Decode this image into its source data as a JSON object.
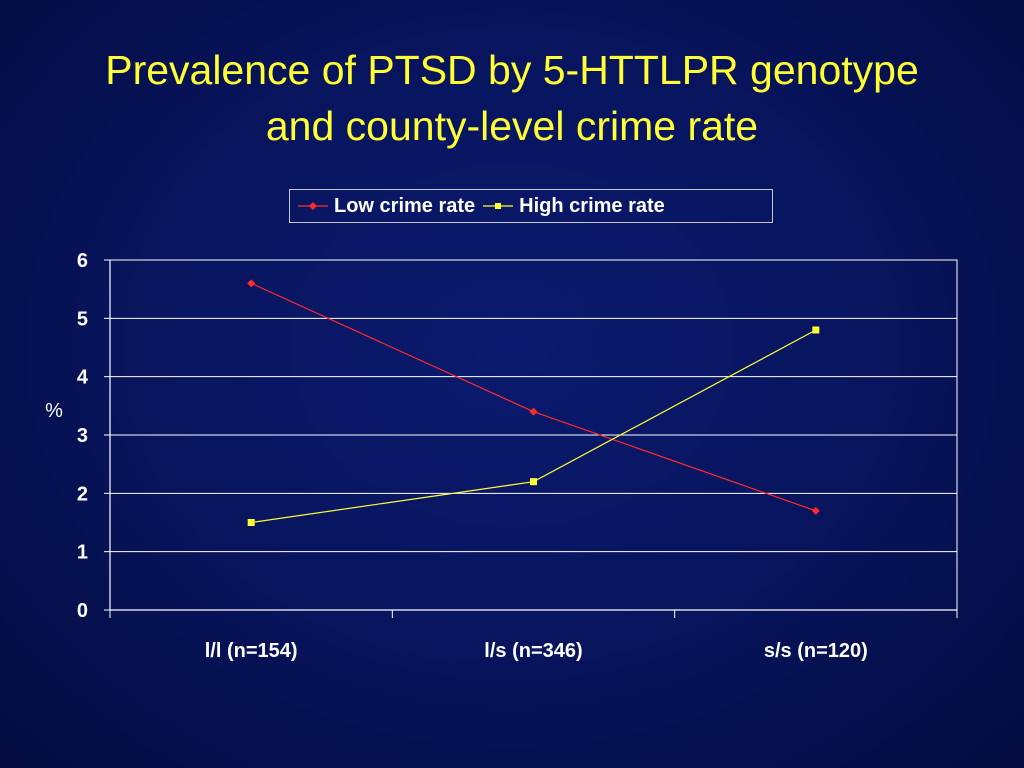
{
  "slide": {
    "title_line1": "Prevalence of PTSD by 5-HTTLPR genotype",
    "title_line2": "and county-level crime rate"
  },
  "colors": {
    "title": "#ffff33",
    "text": "#ffffff",
    "gridline": "#ffffff",
    "low_series": "#ff2a2a",
    "high_series": "#ffff33"
  },
  "chart_data": {
    "type": "line",
    "title": "",
    "xlabel": "",
    "ylabel": "%",
    "categories": [
      "l/l (n=154)",
      "l/s (n=346)",
      "s/s (n=120)"
    ],
    "ylim": [
      0,
      6
    ],
    "yticks": [
      0,
      1,
      2,
      3,
      4,
      5,
      6
    ],
    "grid": true,
    "legend_position": "top",
    "series": [
      {
        "name": "Low crime rate",
        "values": [
          5.6,
          3.4,
          1.7
        ],
        "color": "#ff2a2a",
        "marker": "diamond"
      },
      {
        "name": "High crime rate",
        "values": [
          1.5,
          2.2,
          4.8
        ],
        "color": "#ffff33",
        "marker": "square"
      }
    ]
  }
}
